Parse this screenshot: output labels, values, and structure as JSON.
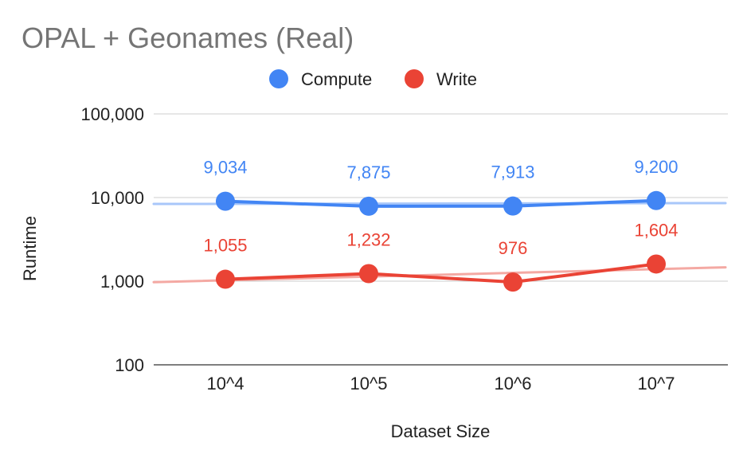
{
  "chart_data": {
    "type": "line",
    "title": "OPAL + Geonames (Real)",
    "xlabel": "Dataset Size",
    "ylabel": "Runtime",
    "categories": [
      "10^4",
      "10^5",
      "10^6",
      "10^7"
    ],
    "y_scale": "log",
    "ylim": [
      100,
      100000
    ],
    "y_ticks": [
      {
        "value": 100,
        "label": "100"
      },
      {
        "value": 1000,
        "label": "1,000"
      },
      {
        "value": 10000,
        "label": "10,000"
      },
      {
        "value": 100000,
        "label": "100,000"
      }
    ],
    "grid": true,
    "legend_position": "top",
    "series": [
      {
        "name": "Compute",
        "color": "#4285F4",
        "trend_color": "#A8C7FA",
        "values": [
          9034,
          7875,
          7913,
          9200
        ],
        "labels": [
          "9,034",
          "7,875",
          "7,913",
          "9,200"
        ]
      },
      {
        "name": "Write",
        "color": "#EA4335",
        "trend_color": "#F4A9A3",
        "values": [
          1055,
          1232,
          976,
          1604
        ],
        "labels": [
          "1,055",
          "1,232",
          "976",
          "1,604"
        ]
      }
    ],
    "trendlines": "linear-on-log"
  }
}
